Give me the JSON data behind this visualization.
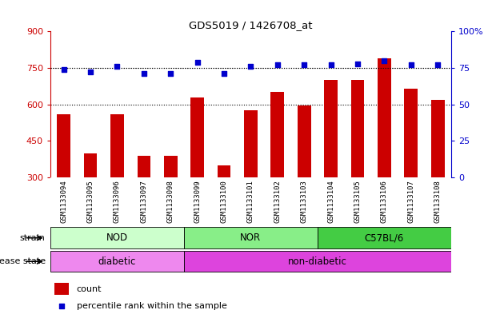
{
  "title": "GDS5019 / 1426708_at",
  "samples": [
    "GSM1133094",
    "GSM1133095",
    "GSM1133096",
    "GSM1133097",
    "GSM1133098",
    "GSM1133099",
    "GSM1133100",
    "GSM1133101",
    "GSM1133102",
    "GSM1133103",
    "GSM1133104",
    "GSM1133105",
    "GSM1133106",
    "GSM1133107",
    "GSM1133108"
  ],
  "counts": [
    560,
    400,
    560,
    390,
    390,
    630,
    350,
    575,
    650,
    595,
    700,
    700,
    790,
    665,
    620
  ],
  "percentiles": [
    74,
    72,
    76,
    71,
    71,
    79,
    71,
    76,
    77,
    77,
    77,
    78,
    80,
    77,
    77
  ],
  "ylim_left": [
    300,
    900
  ],
  "ylim_right": [
    0,
    100
  ],
  "yticks_left": [
    300,
    450,
    600,
    750,
    900
  ],
  "yticks_right": [
    0,
    25,
    50,
    75,
    100
  ],
  "bar_color": "#cc0000",
  "dot_color": "#0000cc",
  "bar_width": 0.5,
  "strain_groups": [
    {
      "label": "NOD",
      "start": 0,
      "end": 5,
      "color": "#ccffcc"
    },
    {
      "label": "NOR",
      "start": 5,
      "end": 10,
      "color": "#88ee88"
    },
    {
      "label": "C57BL/6",
      "start": 10,
      "end": 15,
      "color": "#44cc44"
    }
  ],
  "disease_groups": [
    {
      "label": "diabetic",
      "start": 0,
      "end": 5,
      "color": "#ee88ee"
    },
    {
      "label": "non-diabetic",
      "start": 5,
      "end": 15,
      "color": "#dd44dd"
    }
  ],
  "left_axis_color": "#cc0000",
  "right_axis_color": "#0000cc",
  "grid_color": "#000000",
  "bg_color": "#ffffff",
  "legend_count_label": "count",
  "legend_pct_label": "percentile rank within the sample",
  "strain_label": "strain",
  "disease_label": "disease state"
}
